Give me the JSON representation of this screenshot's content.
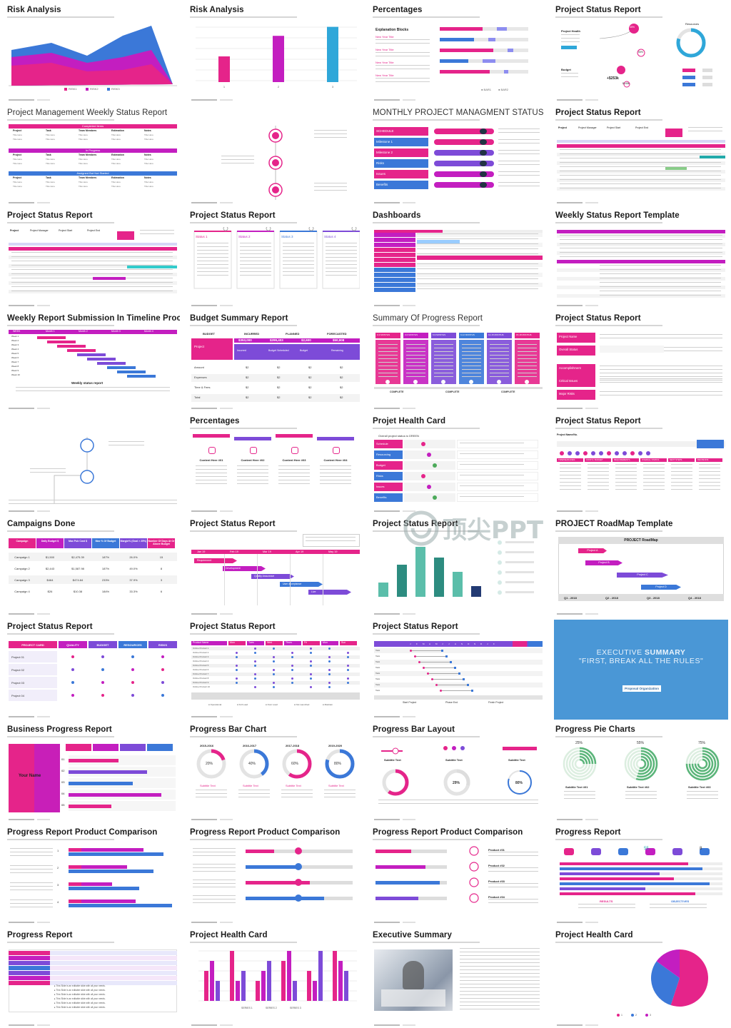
{
  "palette": {
    "pink": "#e5248a",
    "magenta": "#c31ec0",
    "blue": "#3b78d8",
    "purple": "#7d4bd8",
    "cyan": "#2fa7d9",
    "grey": "#b9b9b9",
    "teal": "#3aa39a",
    "navy": "#233a73"
  },
  "watermark": "顶尖PPT",
  "slides": [
    {
      "id": "s1",
      "title": "Risk Analysis",
      "kind": "area",
      "legend": [
        "RISK1",
        "RISK2",
        "RISK3"
      ]
    },
    {
      "id": "s2",
      "title": "Risk Analysis",
      "kind": "bars",
      "values": [
        40,
        72,
        86
      ],
      "colors": [
        "#e5248a",
        "#c31ec0",
        "#2fa7d9"
      ],
      "xlabels": [
        "1",
        "2",
        "3"
      ]
    },
    {
      "id": "s3",
      "title": "Percentages",
      "kind": "percent",
      "blocks_title": "Explanation Blocks",
      "block_label": "New Year Title",
      "legend": [
        "BAR1",
        "BAR2"
      ]
    },
    {
      "id": "s4",
      "title": "Project Status Report",
      "kind": "status-donut",
      "labels": [
        "Project Health",
        "Budget"
      ],
      "values": [
        "45%",
        "55%",
        "+$253k",
        "$145k"
      ],
      "resources": "Resources"
    },
    {
      "id": "s5",
      "title": "Project Management Weekly Status Report",
      "kind": "weekly-table",
      "sections": [
        "Completed Items",
        "In Progress",
        "Assigned But Not Started"
      ],
      "cols": [
        "Project",
        "Task",
        "Team Members",
        "Estimation",
        "Notes"
      ],
      "light": true
    },
    {
      "id": "s6",
      "title": "",
      "kind": "timeline-icons"
    },
    {
      "id": "s7",
      "title": "MONTHLY PROJECT MANAGMENT STATUS",
      "kind": "monthly",
      "rows": [
        "SCHEDULE",
        "Milestone 1",
        "Milestone 2",
        "Risks",
        "Issues",
        "Benefits"
      ],
      "light": true
    },
    {
      "id": "s8",
      "title": "Project Status Report",
      "kind": "table-pink"
    },
    {
      "id": "s9",
      "title": "Project Status Report",
      "kind": "table-pink2"
    },
    {
      "id": "s10",
      "title": "Project Status Report",
      "kind": "four-status",
      "labels": [
        "Status 1",
        "Status 2",
        "Status 3",
        "Status 4"
      ]
    },
    {
      "id": "s11",
      "title": "Dashboards",
      "kind": "dashboard"
    },
    {
      "id": "s12",
      "title": "Weekly Status Report Template",
      "kind": "weekly-template"
    },
    {
      "id": "s13",
      "title": "Weekly Report Submission In Timeline Process",
      "kind": "gantt-weeks",
      "caption": "Weekly status report"
    },
    {
      "id": "s14",
      "title": "Budget Summary Report",
      "kind": "budget",
      "cols": [
        "BUDGET",
        "INCURRED",
        "PLANNED",
        "FORECASTED"
      ],
      "vals": [
        "$353,000",
        "$299,403",
        "$2,600",
        "$50,908"
      ],
      "rows": [
        "Amount",
        "Expenses",
        "Time & Fees",
        "Total"
      ]
    },
    {
      "id": "s15",
      "title": "Summary Of Progress Report",
      "kind": "progress-cols",
      "light": true,
      "cols": [
        "0-3 MONTHS",
        "3-6 MONTHS",
        "6-9 MONTHS",
        "9-12 MONTHS",
        "12-15 MONTHS",
        "15-18 MONTHS"
      ],
      "foot": [
        "COMPLETE",
        "COMPLETE",
        "COMPLETE"
      ]
    },
    {
      "id": "s16",
      "title": "Project Status Report",
      "kind": "status-list",
      "rows": [
        "Project Name",
        "Overall Status",
        "Accomplishment",
        "Critical Issues",
        "Major Risks"
      ]
    },
    {
      "id": "s17",
      "title": "",
      "kind": "icons-timeline2"
    },
    {
      "id": "s18",
      "title": "Percentages",
      "kind": "content-here",
      "labels": [
        "Content Here #01",
        "Content Here #02",
        "Content Here #03",
        "Content Here #04"
      ]
    },
    {
      "id": "s19",
      "title": "Projet Health Card",
      "kind": "health-card",
      "rows": [
        "Schedule",
        "Resourcing",
        "Budget",
        "Risks",
        "Issues",
        "Benefits"
      ],
      "note": "Overall project status is GREEN"
    },
    {
      "id": "s20",
      "title": "Project Status Report",
      "kind": "status-dots",
      "heads": [
        "TIME/DEADLINES",
        "COSTS / BUDGET",
        "REQUIREMENTS",
        "OVERALL STATUS",
        "NEXT STEPS",
        "DECISIONS"
      ]
    },
    {
      "id": "s21",
      "title": "Campaigns Done",
      "kind": "campaigns",
      "cols": [
        "Campaign",
        "Daily Budget $",
        "Max Pub Cost $",
        "Max % Of Budget",
        "Margin% (Goal > 25%)",
        "Number Of Days At Or Above Budget"
      ],
      "rows": [
        [
          "Campaign 1",
          "$1,500",
          "$2,475.39",
          "187%",
          "26.0%",
          "15"
        ],
        [
          "Campaign 2",
          "$2,443",
          "$1,587.98",
          "187%",
          "49.0%",
          "8"
        ],
        [
          "Campaign 3",
          "$464",
          "$474.84",
          "233%",
          "37.9%",
          "3"
        ],
        [
          "Campaign 4",
          "$26",
          "$10.38",
          "184%",
          "33.3%",
          "6"
        ]
      ]
    },
    {
      "id": "s22",
      "title": "Project Status Report",
      "kind": "gantt-arrows",
      "months": [
        "Jan 19",
        "Feb 19",
        "Mar 19",
        "Apr 19",
        "May 19"
      ],
      "bars": [
        "Requirement",
        "Development",
        "Quality Assurance",
        "User acceptance",
        "Live"
      ]
    },
    {
      "id": "s23",
      "title": "Project Status Report",
      "kind": "teal-bars",
      "values": [
        20,
        45,
        70,
        55,
        35,
        15
      ]
    },
    {
      "id": "s24",
      "title": "PROJECT RoadMap Template",
      "kind": "roadmap",
      "header": "PROJECT RoadMap",
      "bars": [
        "Project A",
        "Project B",
        "Project C",
        "Project D"
      ],
      "quarters": [
        "Q1 - 2018",
        "Q2 - 2018",
        "Q3 - 2018",
        "Q4 - 2018"
      ]
    },
    {
      "id": "s25",
      "title": "Project Status Report",
      "kind": "card-grid",
      "cols": [
        "PROJECT CARD",
        "QUALITY",
        "BUDGET",
        "RESOURCES",
        "RISKS"
      ],
      "rows": [
        "Project 01",
        "Project 02",
        "Project 03",
        "Project 04"
      ]
    },
    {
      "id": "s26",
      "title": "Project Status Report",
      "kind": "dot-matrix",
      "cols": [
        "Product Name",
        "Mon",
        "Tues",
        "Wed",
        "Thurs",
        "Fri",
        "Mon",
        "Sun"
      ]
    },
    {
      "id": "s27",
      "title": "Project Status Report",
      "kind": "month-grid",
      "legend": [
        "Start Project",
        "Phase End",
        "Finish Project"
      ]
    },
    {
      "id": "s28",
      "title": "",
      "kind": "exec",
      "big1": "EXECUTIVE",
      "big1b": "SUMMARY",
      "big2": "\"FIRST, BREAK ALL THE RULES\"",
      "pill": "Proposal Organization"
    },
    {
      "id": "s29",
      "title": "Business Progress Report",
      "kind": "business",
      "name": "Your Name"
    },
    {
      "id": "s30",
      "title": "Progress Bar Chart",
      "kind": "ring-row",
      "years": [
        "2015-2016",
        "2016-2017",
        "2017-2018",
        "2019-2020"
      ],
      "vals": [
        20,
        40,
        60,
        80
      ],
      "labels": [
        "20%",
        "40%",
        "60%",
        "80%"
      ],
      "sub": "Subtitle Text"
    },
    {
      "id": "s31",
      "title": "Progress Bar Layout",
      "kind": "bar-layout",
      "vals": [
        "29%",
        "80%"
      ],
      "sub": "Subtitle Text"
    },
    {
      "id": "s32",
      "title": "Progress Pie Charts",
      "kind": "pie-charts",
      "vals": [
        25,
        55,
        75
      ],
      "labels": [
        "25%",
        "55%",
        "75%"
      ],
      "subs": [
        "Subtitle Text #01",
        "Subtitle Text #02",
        "Subtitle Text #03"
      ]
    },
    {
      "id": "s33",
      "title": "Progress Report Product Comparison",
      "kind": "comparison-a",
      "values": [
        [
          62,
          78
        ],
        [
          48,
          70
        ],
        [
          36,
          58
        ],
        [
          55,
          85
        ]
      ]
    },
    {
      "id": "s34",
      "title": "Progress Report Product Comparison",
      "kind": "comparison-b"
    },
    {
      "id": "s35",
      "title": "Progress Report Product Comparison",
      "kind": "comparison-c",
      "products": [
        "Product #01",
        "Product #02",
        "Product #03",
        "Product #04"
      ]
    },
    {
      "id": "s36",
      "title": "Progress Report",
      "kind": "progress-report",
      "stats": [
        "55",
        "8"
      ],
      "heads": [
        "RESULTS",
        "OBJECTIVES"
      ]
    },
    {
      "id": "s37",
      "title": "Progress Report",
      "kind": "progress-table"
    },
    {
      "id": "s38",
      "title": "Project Health Card",
      "kind": "grouped-bars",
      "legend": [
        "SERIES 1",
        "SERIES 2",
        "SERIES 3"
      ],
      "groups": [
        [
          3,
          4,
          2
        ],
        [
          5,
          2,
          3
        ],
        [
          2,
          3,
          4
        ],
        [
          4,
          5,
          2
        ],
        [
          3,
          2,
          5
        ],
        [
          5,
          4,
          3
        ]
      ]
    },
    {
      "id": "s39",
      "title": "Executive Summary",
      "kind": "photo"
    },
    {
      "id": "s40",
      "title": "Project Health Card",
      "kind": "pie",
      "values": [
        55,
        30,
        15
      ],
      "legend": [
        "1",
        "2",
        "3"
      ]
    }
  ]
}
